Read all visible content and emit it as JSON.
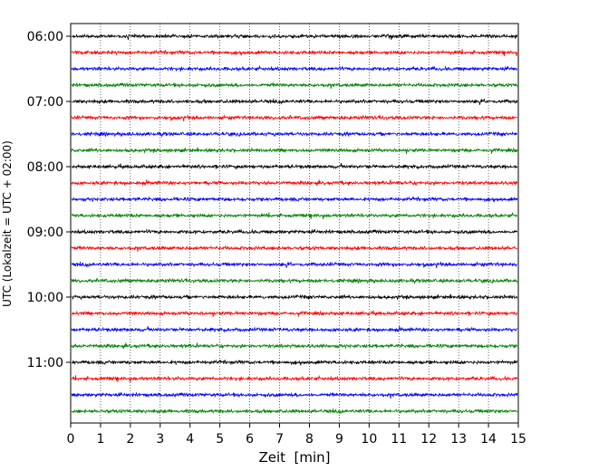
{
  "chart_data": {
    "type": "line",
    "title": "",
    "xlabel": "Zeit  [min]",
    "ylabel": "UTC (Lokalzeit = UTC + 02:00)",
    "xlim": [
      0,
      15
    ],
    "x_ticks": [
      0,
      1,
      2,
      3,
      4,
      5,
      6,
      7,
      8,
      9,
      10,
      11,
      12,
      13,
      14,
      15
    ],
    "x_grid": true,
    "y_tick_labels": [
      "06:00",
      "07:00",
      "08:00",
      "09:00",
      "10:00",
      "11:00"
    ],
    "trace_interval_minutes": 15,
    "first_trace_time": "06:00",
    "trace_start_times": [
      "06:00",
      "06:15",
      "06:30",
      "06:45",
      "07:00",
      "07:15",
      "07:30",
      "07:45",
      "08:00",
      "08:15",
      "08:30",
      "08:45",
      "09:00",
      "09:15",
      "09:30",
      "09:45",
      "10:00",
      "10:15",
      "10:30",
      "10:45",
      "11:00",
      "11:15",
      "11:30",
      "11:45"
    ],
    "trace_colors": [
      "#000000",
      "#ff0000",
      "#0000ff",
      "#008000"
    ]
  }
}
